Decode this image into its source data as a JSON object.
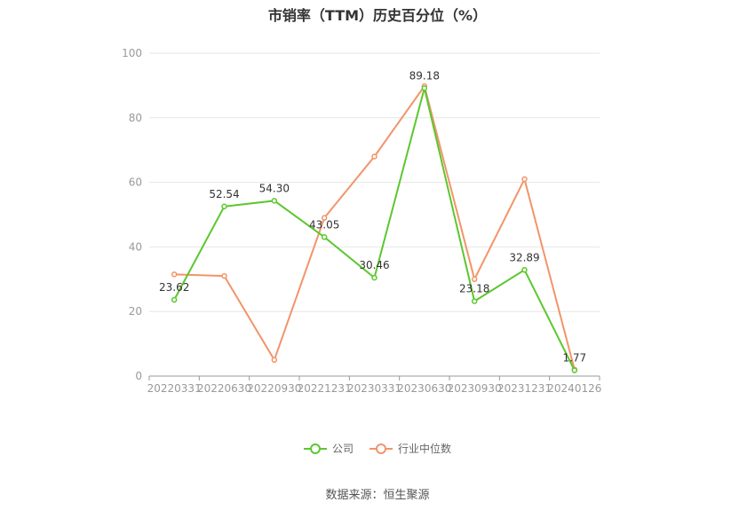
{
  "title": "市销率（TTM）历史百分位（%）",
  "source": "数据来源：恒生聚源",
  "colors": {
    "company": "#5cc72e",
    "industry": "#f29469",
    "grid": "#e6e6e6",
    "axis": "#999999"
  },
  "chart_data": {
    "type": "line",
    "categories": [
      "20220331",
      "20220630",
      "20220930",
      "20221231",
      "20230331",
      "20230630",
      "20230930",
      "20231231",
      "20240126"
    ],
    "ylim": [
      0,
      100
    ],
    "yticks": [
      0,
      20,
      40,
      60,
      80,
      100
    ],
    "grid": true,
    "legend_position": "bottom",
    "series": [
      {
        "name": "公司",
        "values": [
          23.62,
          52.54,
          54.3,
          43.05,
          30.46,
          89.18,
          23.18,
          32.89,
          1.77
        ],
        "labels": [
          "23.62",
          "52.54",
          "54.30",
          "43.05",
          "30.46",
          "89.18",
          "23.18",
          "32.89",
          "1.77"
        ]
      },
      {
        "name": "行业中位数",
        "values": [
          31.5,
          31.0,
          5.0,
          49.0,
          68.0,
          89.8,
          30.0,
          61.0,
          2.0
        ]
      }
    ]
  }
}
